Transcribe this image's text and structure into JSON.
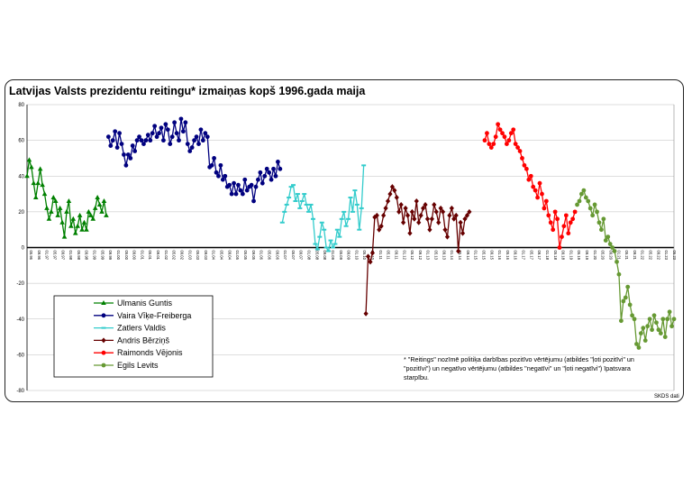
{
  "title": "Latvijas Valsts prezidentu reitingu* izmaiņas kopš 1996.gada maija",
  "note_lines": [
    "* \"Reitings\" nozīmē politiķa darbības pozitīvo vērtējumu (atbildes \"ļoti pozitīvi\" un",
    "\"pozitīvi\") un negatīvo vērtējumu (atbildes \"negatīvi\" un \"ļoti negatīvi\") īpatsvara",
    "starpību."
  ],
  "source": "SKDS dati",
  "chart_data": {
    "type": "line",
    "title": "Latvijas Valsts prezidentu reitingu* izmaiņas kopš 1996.gada maija",
    "xlabel": "",
    "ylabel": "",
    "ylim": [
      -80,
      80
    ],
    "yticks": [
      -80,
      -60,
      -40,
      -20,
      0,
      20,
      40,
      60,
      80
    ],
    "grid": true,
    "legend_position": "bottom-left",
    "x_tick_labels": [
      "05.96",
      "09.96",
      "01.97",
      "05.97",
      "09.97",
      "01.98",
      "05.98",
      "09.98",
      "01.99",
      "05.99",
      "09.99",
      "01.00",
      "05.00",
      "09.00",
      "01.01",
      "05.01",
      "09.01",
      "01.02",
      "05.02",
      "09.02",
      "01.03",
      "05.03",
      "09.03",
      "01.04",
      "05.04",
      "09.04",
      "01.05",
      "05.05",
      "09.05",
      "01.06",
      "05.06",
      "09.06",
      "01.07",
      "05.07",
      "09.07",
      "01.08",
      "05.08",
      "09.08",
      "01.09",
      "05.09",
      "09.09",
      "01.10",
      "05.10",
      "09.10",
      "01.11",
      "05.11",
      "09.11",
      "01.12",
      "05.12",
      "09.12",
      "01.13",
      "05.13",
      "09.13",
      "01.14",
      "05.14",
      "09.14",
      "01.15",
      "05.15",
      "09.15",
      "01.16",
      "05.16",
      "09.16",
      "01.17",
      "05.17",
      "09.17",
      "01.18",
      "05.18",
      "09.18",
      "01.19",
      "05.19",
      "09.19",
      "01.20",
      "05.20",
      "09.20",
      "01.21",
      "05.21",
      "09.21",
      "01.22",
      "05.22",
      "09.22",
      "01.23",
      "05.23"
    ],
    "series": [
      {
        "name": "Ulmanis Guntis",
        "color": "#008000",
        "marker": "triangle",
        "start_index": 0,
        "values": [
          40,
          49,
          45,
          36,
          28,
          36,
          44,
          35,
          30,
          22,
          16,
          20,
          28,
          26,
          18,
          22,
          14,
          6,
          20,
          26,
          12,
          16,
          8,
          12,
          18,
          10,
          14,
          10,
          20,
          18,
          16,
          22,
          28,
          24,
          20,
          26,
          18
        ]
      },
      {
        "name": "Vaira Vīķe-Freiberga",
        "color": "#00007f",
        "marker": "circle",
        "start_index": 37,
        "values": [
          62,
          57,
          60,
          65,
          56,
          64,
          58,
          52,
          46,
          52,
          50,
          57,
          54,
          60,
          62,
          60,
          58,
          60,
          63,
          60,
          64,
          68,
          62,
          64,
          67,
          60,
          69,
          66,
          58,
          62,
          70,
          64,
          60,
          72,
          65,
          70,
          58,
          54,
          56,
          60,
          62,
          58,
          66,
          60,
          64,
          62,
          45,
          46,
          50,
          42,
          40,
          46,
          38,
          40,
          34,
          35,
          30,
          36,
          30,
          35,
          32,
          30,
          38,
          32,
          34,
          35,
          26,
          34,
          38,
          42,
          36,
          40,
          44,
          42,
          38,
          44,
          40,
          48,
          44
        ]
      },
      {
        "name": "Zatlers Valdis",
        "color": "#33cccc",
        "marker": "dash",
        "start_index": 116,
        "values": [
          14,
          20,
          24,
          28,
          34,
          35,
          26,
          30,
          22,
          26,
          30,
          24,
          20,
          24,
          16,
          2,
          -1,
          6,
          14,
          10,
          0,
          -2,
          4,
          0,
          2,
          10,
          6,
          16,
          20,
          12,
          16,
          28,
          20,
          32,
          24,
          10,
          22,
          46
        ]
      },
      {
        "name": "Andris Bērziņš",
        "color": "#660000",
        "marker": "diamond",
        "start_index": 154,
        "values": [
          -37,
          -5,
          -8,
          -3,
          17,
          18,
          10,
          12,
          18,
          22,
          26,
          30,
          34,
          32,
          28,
          20,
          24,
          14,
          22,
          18,
          8,
          20,
          16,
          26,
          14,
          18,
          22,
          24,
          16,
          10,
          16,
          24,
          20,
          14,
          22,
          20,
          10,
          6,
          18,
          22,
          16,
          18,
          -2,
          14,
          8,
          16,
          18,
          20
        ]
      },
      {
        "name": "Raimonds Vējonis",
        "color": "#ff0000",
        "marker": "circle",
        "start_index": 208,
        "values": [
          60,
          64,
          58,
          56,
          58,
          62,
          69,
          66,
          64,
          62,
          58,
          60,
          64,
          66,
          58,
          56,
          54,
          50,
          46,
          44,
          38,
          40,
          34,
          32,
          28,
          36,
          30,
          22,
          26,
          18,
          14,
          10,
          20,
          16,
          0,
          6,
          12,
          18,
          8,
          14,
          16,
          20
        ]
      },
      {
        "name": "Egils Levits",
        "color": "#669933",
        "marker": "circle",
        "start_index": 250,
        "values": [
          24,
          26,
          30,
          32,
          28,
          26,
          22,
          18,
          24,
          20,
          14,
          10,
          16,
          4,
          6,
          2,
          0,
          -2,
          -8,
          -15,
          -41,
          -30,
          -28,
          -22,
          -32,
          -38,
          -40,
          -54,
          -56,
          -48,
          -45,
          -52,
          -44,
          -40,
          -46,
          -38,
          -42,
          -46,
          -48,
          -40,
          -50,
          -40,
          -36,
          -44,
          -40
        ]
      }
    ]
  }
}
